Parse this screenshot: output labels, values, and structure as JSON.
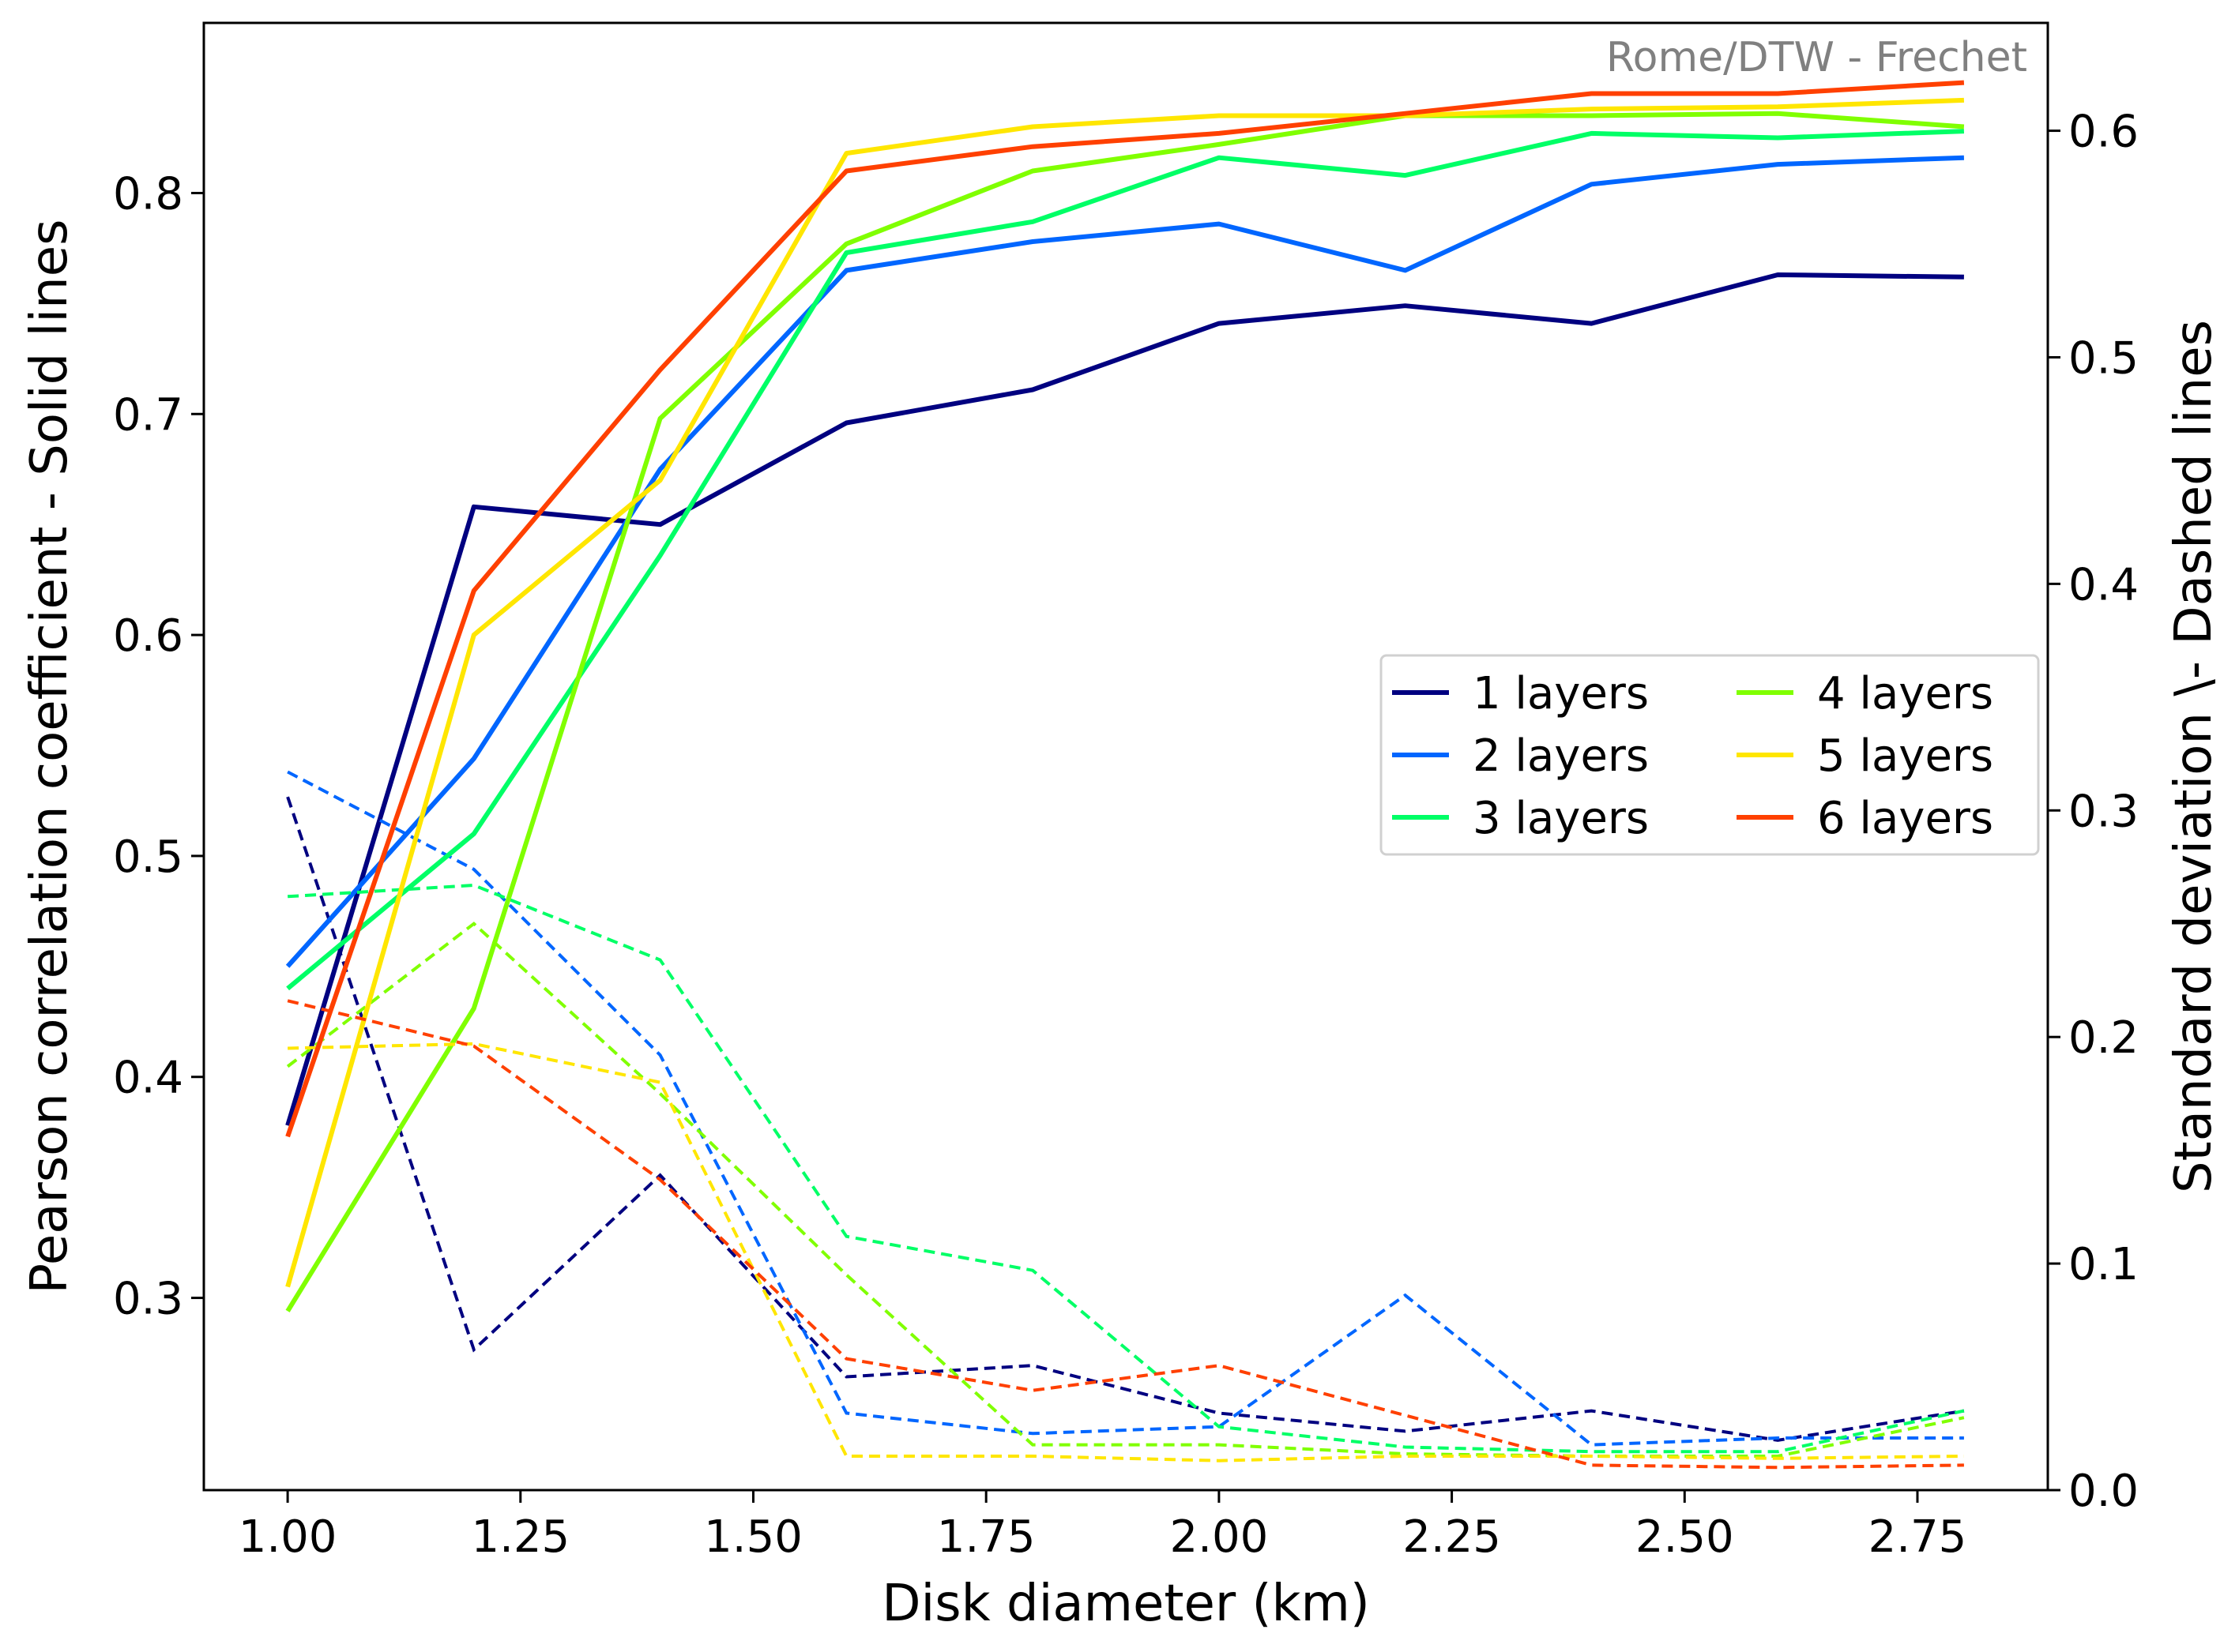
{
  "chart_data": {
    "type": "line",
    "annotation": "Rome/DTW - Frechet",
    "xlabel": "Disk diameter (km)",
    "ylabel": "Pearson correlation coefficient - Solid lines",
    "y2label": "Standard deviation \\- Dashed lines",
    "xlim": [
      0.91,
      2.89
    ],
    "ylim": [
      0.213,
      0.877
    ],
    "y2lim": [
      0.0,
      0.6476
    ],
    "x_ticks": [
      "1.00",
      "1.25",
      "1.50",
      "1.75",
      "2.00",
      "2.25",
      "2.50",
      "2.75"
    ],
    "y_ticks": [
      "0.3",
      "0.4",
      "0.5",
      "0.6",
      "0.7",
      "0.8"
    ],
    "y2_ticks": [
      "0.0",
      "0.1",
      "0.2",
      "0.3",
      "0.4",
      "0.5",
      "0.6"
    ],
    "x": [
      1.0,
      1.2,
      1.4,
      1.6,
      1.8,
      2.0,
      2.2,
      2.4,
      2.6,
      2.8
    ],
    "series": [
      {
        "name": "1 layers",
        "color": "#000080",
        "pearson": [
          0.378,
          0.658,
          0.65,
          0.696,
          0.711,
          0.741,
          0.749,
          0.741,
          0.763,
          0.762
        ],
        "std": [
          0.306,
          0.062,
          0.139,
          0.05,
          0.055,
          0.034,
          0.026,
          0.035,
          0.022,
          0.035
        ]
      },
      {
        "name": "2 layers",
        "color": "#0066ff",
        "pearson": [
          0.45,
          0.544,
          0.675,
          0.765,
          0.778,
          0.786,
          0.765,
          0.804,
          0.813,
          0.816
        ],
        "std": [
          0.317,
          0.274,
          0.192,
          0.034,
          0.025,
          0.028,
          0.086,
          0.02,
          0.023,
          0.023
        ]
      },
      {
        "name": "3 layers",
        "color": "#00ff66",
        "pearson": [
          0.44,
          0.51,
          0.636,
          0.773,
          0.787,
          0.816,
          0.808,
          0.827,
          0.825,
          0.828
        ],
        "std": [
          0.262,
          0.267,
          0.234,
          0.112,
          0.097,
          0.028,
          0.019,
          0.017,
          0.017,
          0.035
        ]
      },
      {
        "name": "4 layers",
        "color": "#80ff00",
        "pearson": [
          0.294,
          0.431,
          0.698,
          0.777,
          0.81,
          0.822,
          0.835,
          0.835,
          0.836,
          0.83
        ],
        "std": [
          0.187,
          0.25,
          0.175,
          0.095,
          0.02,
          0.02,
          0.016,
          0.015,
          0.015,
          0.032
        ]
      },
      {
        "name": "5 layers",
        "color": "#ffe600",
        "pearson": [
          0.305,
          0.6,
          0.67,
          0.818,
          0.83,
          0.835,
          0.835,
          0.838,
          0.839,
          0.842
        ],
        "std": [
          0.195,
          0.197,
          0.18,
          0.015,
          0.015,
          0.013,
          0.015,
          0.015,
          0.014,
          0.015
        ]
      },
      {
        "name": "6 layers",
        "color": "#ff4000",
        "pearson": [
          0.373,
          0.62,
          0.72,
          0.81,
          0.821,
          0.827,
          0.836,
          0.845,
          0.845,
          0.85
        ],
        "std": [
          0.216,
          0.196,
          0.137,
          0.058,
          0.044,
          0.055,
          0.033,
          0.011,
          0.01,
          0.011
        ]
      }
    ],
    "legend": "center-right, 2 columns",
    "grid": false
  }
}
